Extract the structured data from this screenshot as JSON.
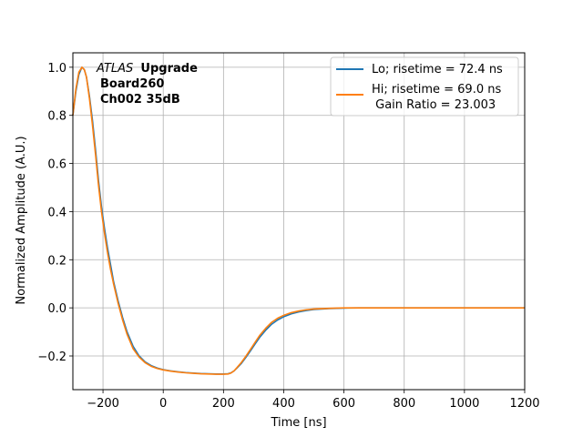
{
  "chart_data": {
    "type": "line",
    "xlabel": "Time [ns]",
    "ylabel": "Normalized Amplitude (A.U.)",
    "xlim": [
      -300,
      1200
    ],
    "ylim": [
      -0.34,
      1.06
    ],
    "xticks": [
      -200,
      0,
      200,
      400,
      600,
      800,
      1000,
      1200
    ],
    "yticks": [
      -0.2,
      0.0,
      0.2,
      0.4,
      0.6,
      0.8,
      1.0
    ],
    "xtick_labels": [
      "−200",
      "0",
      "200",
      "400",
      "600",
      "800",
      "1000",
      "1200"
    ],
    "ytick_labels": [
      "−0.2",
      "0.0",
      "0.2",
      "0.4",
      "0.6",
      "0.8",
      "1.0"
    ],
    "grid": true,
    "legend_position": "upper right",
    "annotation": {
      "italic": "ATLAS",
      "bold_suffix": "Upgrade",
      "line2": "Board260",
      "line3": "Ch002 35dB"
    },
    "series": [
      {
        "name": "Lo; risetime = 72.4 ns",
        "color": "#1f77b4",
        "x": [
          -300,
          -290,
          -280,
          -270,
          -262,
          -255,
          -245,
          -235,
          -225,
          -215,
          -205,
          -195,
          -185,
          -175,
          -165,
          -150,
          -135,
          -120,
          -100,
          -80,
          -60,
          -40,
          -20,
          0,
          25,
          50,
          75,
          100,
          125,
          150,
          175,
          200,
          215,
          225,
          235,
          245,
          260,
          275,
          290,
          305,
          320,
          340,
          360,
          380,
          400,
          425,
          450,
          475,
          500,
          550,
          600,
          650,
          700,
          800,
          900,
          1000,
          1100,
          1200
        ],
        "y": [
          0.8,
          0.9,
          0.97,
          1.0,
          0.99,
          0.96,
          0.88,
          0.78,
          0.66,
          0.53,
          0.42,
          0.33,
          0.25,
          0.18,
          0.11,
          0.03,
          -0.04,
          -0.1,
          -0.16,
          -0.2,
          -0.225,
          -0.24,
          -0.25,
          -0.257,
          -0.262,
          -0.266,
          -0.269,
          -0.271,
          -0.273,
          -0.274,
          -0.275,
          -0.275,
          -0.274,
          -0.27,
          -0.262,
          -0.25,
          -0.23,
          -0.205,
          -0.178,
          -0.15,
          -0.123,
          -0.093,
          -0.068,
          -0.05,
          -0.037,
          -0.025,
          -0.017,
          -0.011,
          -0.007,
          -0.003,
          -0.001,
          0.0,
          0.0,
          0.0,
          0.0,
          0.0,
          0.0,
          0.0
        ]
      },
      {
        "name": "Hi; risetime = 69.0 ns\n Gain Ratio = 23.003",
        "color": "#ff7f0e",
        "x": [
          -300,
          -290,
          -280,
          -270,
          -262,
          -255,
          -245,
          -235,
          -225,
          -215,
          -205,
          -195,
          -185,
          -175,
          -165,
          -150,
          -135,
          -120,
          -100,
          -80,
          -60,
          -40,
          -20,
          0,
          25,
          50,
          75,
          100,
          125,
          150,
          175,
          200,
          215,
          225,
          235,
          245,
          260,
          275,
          290,
          305,
          320,
          340,
          360,
          380,
          400,
          425,
          450,
          475,
          500,
          550,
          600,
          650,
          700,
          800,
          900,
          1000,
          1100,
          1200
        ],
        "y": [
          0.8,
          0.91,
          0.98,
          1.0,
          0.99,
          0.96,
          0.87,
          0.76,
          0.64,
          0.51,
          0.4,
          0.31,
          0.23,
          0.16,
          0.1,
          0.02,
          -0.05,
          -0.11,
          -0.17,
          -0.205,
          -0.228,
          -0.243,
          -0.252,
          -0.258,
          -0.263,
          -0.267,
          -0.27,
          -0.272,
          -0.274,
          -0.275,
          -0.276,
          -0.276,
          -0.275,
          -0.271,
          -0.262,
          -0.248,
          -0.226,
          -0.2,
          -0.172,
          -0.143,
          -0.115,
          -0.085,
          -0.06,
          -0.043,
          -0.031,
          -0.02,
          -0.013,
          -0.008,
          -0.005,
          -0.002,
          0.0,
          0.0,
          0.0,
          0.0,
          0.0,
          0.0,
          0.0,
          0.0
        ]
      }
    ]
  }
}
